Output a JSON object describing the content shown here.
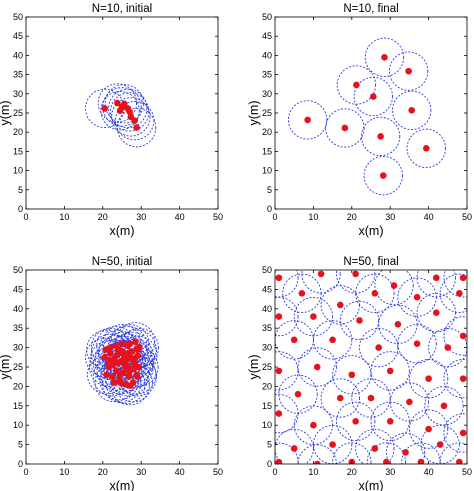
{
  "colors": {
    "agent": "#e8121c",
    "range": "#2b3be0",
    "axis": "#000000"
  },
  "chart_data": [
    {
      "type": "scatter",
      "title": "N=10, initial",
      "xlabel": "x(m)",
      "ylabel": "y(m)",
      "xlim": [
        0,
        50
      ],
      "ylim": [
        0,
        50
      ],
      "xticks": [
        0,
        10,
        20,
        30,
        40,
        50
      ],
      "yticks": [
        0,
        5,
        10,
        15,
        20,
        25,
        30,
        35,
        40,
        45,
        50
      ],
      "circle_radius": 5,
      "points": [
        [
          20.5,
          26.2
        ],
        [
          23.8,
          27.6
        ],
        [
          25.0,
          26.6
        ],
        [
          25.6,
          27.4
        ],
        [
          24.5,
          25.6
        ],
        [
          26.5,
          26.2
        ],
        [
          27.3,
          24.0
        ],
        [
          27.0,
          25.3
        ],
        [
          28.3,
          23.0
        ],
        [
          28.8,
          21.2
        ]
      ]
    },
    {
      "type": "scatter",
      "title": "N=10, final",
      "xlabel": "x(m)",
      "ylabel": "y(m)",
      "xlim": [
        0,
        50
      ],
      "ylim": [
        0,
        50
      ],
      "xticks": [
        0,
        10,
        20,
        30,
        40,
        50
      ],
      "yticks": [
        0,
        5,
        10,
        15,
        20,
        25,
        30,
        35,
        40,
        45,
        50
      ],
      "circle_radius": 5,
      "points": [
        [
          28.5,
          39.5
        ],
        [
          21.2,
          32.3
        ],
        [
          34.8,
          35.9
        ],
        [
          25.6,
          29.3
        ],
        [
          8.5,
          23.2
        ],
        [
          35.6,
          25.7
        ],
        [
          18.2,
          21.1
        ],
        [
          27.5,
          18.9
        ],
        [
          39.4,
          15.8
        ],
        [
          28.2,
          8.7
        ]
      ]
    },
    {
      "type": "scatter",
      "title": "N=50, initial",
      "xlabel": "x(m)",
      "ylabel": "y(m)",
      "xlim": [
        0,
        50
      ],
      "ylim": [
        0,
        50
      ],
      "xticks": [
        0,
        10,
        20,
        30,
        40,
        50
      ],
      "yticks": [
        0,
        5,
        10,
        15,
        20,
        25,
        30,
        35,
        40,
        45,
        50
      ],
      "circle_radius": 5,
      "points": [
        [
          20.5,
          27.5
        ],
        [
          21.5,
          25.0
        ],
        [
          22.0,
          30.0
        ],
        [
          22.5,
          22.5
        ],
        [
          23.0,
          27.0
        ],
        [
          23.5,
          24.0
        ],
        [
          24.0,
          29.5
        ],
        [
          24.3,
          21.5
        ],
        [
          24.8,
          26.5
        ],
        [
          25.0,
          31.0
        ],
        [
          25.2,
          23.5
        ],
        [
          25.5,
          28.0
        ],
        [
          26.0,
          20.5
        ],
        [
          26.2,
          25.5
        ],
        [
          26.5,
          30.5
        ],
        [
          26.8,
          22.5
        ],
        [
          27.0,
          27.5
        ],
        [
          27.3,
          24.5
        ],
        [
          27.6,
          29.0
        ],
        [
          27.9,
          21.0
        ],
        [
          28.2,
          26.0
        ],
        [
          28.5,
          31.5
        ],
        [
          28.8,
          23.0
        ],
        [
          29.1,
          28.0
        ],
        [
          29.4,
          25.0
        ],
        [
          21.0,
          23.0
        ],
        [
          22.0,
          28.5
        ],
        [
          23.0,
          21.0
        ],
        [
          24.0,
          26.0
        ],
        [
          25.0,
          29.0
        ],
        [
          26.0,
          27.0
        ],
        [
          27.0,
          31.0
        ],
        [
          28.0,
          24.5
        ],
        [
          29.0,
          22.5
        ],
        [
          29.5,
          30.0
        ],
        [
          20.8,
          29.5
        ],
        [
          22.6,
          25.5
        ],
        [
          24.5,
          23.0
        ],
        [
          25.8,
          25.0
        ],
        [
          26.6,
          28.5
        ],
        [
          27.8,
          26.8
        ],
        [
          28.9,
          29.6
        ],
        [
          23.4,
          30.5
        ],
        [
          24.9,
          20.8
        ],
        [
          26.9,
          23.8
        ],
        [
          21.7,
          26.8
        ],
        [
          28.4,
          27.2
        ],
        [
          25.3,
          26.8
        ],
        [
          23.8,
          28.2
        ],
        [
          27.1,
          20.2
        ]
      ]
    },
    {
      "type": "scatter",
      "title": "N=50, final",
      "xlabel": "x(m)",
      "ylabel": "y(m)",
      "xlim": [
        0,
        50
      ],
      "ylim": [
        0,
        50
      ],
      "xticks": [
        0,
        10,
        20,
        30,
        40,
        50
      ],
      "yticks": [
        0,
        5,
        10,
        15,
        20,
        25,
        30,
        35,
        40,
        45,
        50
      ],
      "circle_radius": 5,
      "points": [
        [
          1,
          48
        ],
        [
          12,
          49
        ],
        [
          21,
          49
        ],
        [
          31,
          46
        ],
        [
          42,
          48
        ],
        [
          49,
          48
        ],
        [
          7,
          44
        ],
        [
          17,
          41
        ],
        [
          26,
          44
        ],
        [
          37,
          43
        ],
        [
          48,
          44
        ],
        [
          1,
          38
        ],
        [
          10,
          38
        ],
        [
          22,
          37
        ],
        [
          32,
          36
        ],
        [
          42,
          39
        ],
        [
          49,
          33
        ],
        [
          5,
          32
        ],
        [
          15,
          32
        ],
        [
          27,
          30
        ],
        [
          37,
          31
        ],
        [
          45,
          30
        ],
        [
          1,
          24
        ],
        [
          11,
          25
        ],
        [
          20,
          23
        ],
        [
          30,
          24
        ],
        [
          40,
          22
        ],
        [
          49,
          22
        ],
        [
          6,
          18
        ],
        [
          17,
          17
        ],
        [
          25,
          17
        ],
        [
          35,
          16
        ],
        [
          44,
          15
        ],
        [
          1,
          13
        ],
        [
          10,
          10
        ],
        [
          21,
          11
        ],
        [
          30,
          11
        ],
        [
          40,
          9
        ],
        [
          49,
          8
        ],
        [
          5,
          4
        ],
        [
          15,
          5
        ],
        [
          26,
          4
        ],
        [
          34,
          3
        ],
        [
          43,
          5
        ],
        [
          1,
          0.5
        ],
        [
          11,
          0
        ],
        [
          20,
          0.5
        ],
        [
          29,
          0.5
        ],
        [
          38,
          0.5
        ],
        [
          48,
          0.5
        ]
      ]
    }
  ]
}
